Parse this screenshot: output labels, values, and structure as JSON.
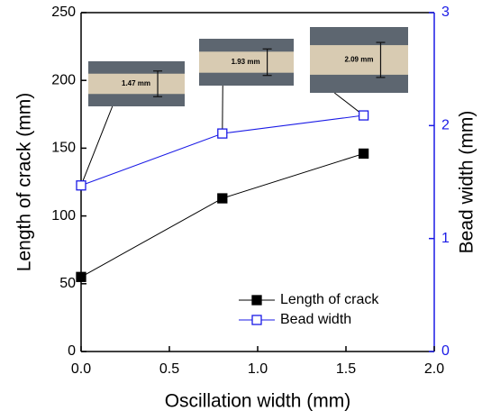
{
  "chart_data": {
    "type": "line",
    "x": [
      0,
      0.8,
      1.6
    ],
    "series": [
      {
        "name": "Length of crack",
        "color": "#000000",
        "marker": "filled-square",
        "values": [
          55,
          113,
          146
        ]
      },
      {
        "name": "Bead width",
        "color": "#1a1ae6",
        "marker": "open-square",
        "axis": "y2",
        "values": [
          1.47,
          1.93,
          2.09
        ],
        "value_labels": [
          "1.47 mm",
          "1.93 mm",
          "2.09 mm"
        ]
      }
    ],
    "xlabel": "Oscillation width (mm)",
    "ylabel": "Length of crack (mm)",
    "y2label": "Bead width (mm)",
    "xlim": [
      0,
      2
    ],
    "xticks": [
      {
        "value": 0,
        "label": "0.0"
      },
      {
        "value": 0.5,
        "label": "0.5"
      },
      {
        "value": 1,
        "label": "1.0"
      },
      {
        "value": 1.5,
        "label": "1.5"
      },
      {
        "value": 2,
        "label": "2.0"
      }
    ],
    "ylim": [
      0,
      250
    ],
    "yticks": [
      0,
      50,
      100,
      150,
      200,
      250
    ],
    "y2lim": [
      0,
      3
    ],
    "y2ticks": [
      0,
      1,
      2,
      3
    ],
    "legend": "lower right"
  }
}
